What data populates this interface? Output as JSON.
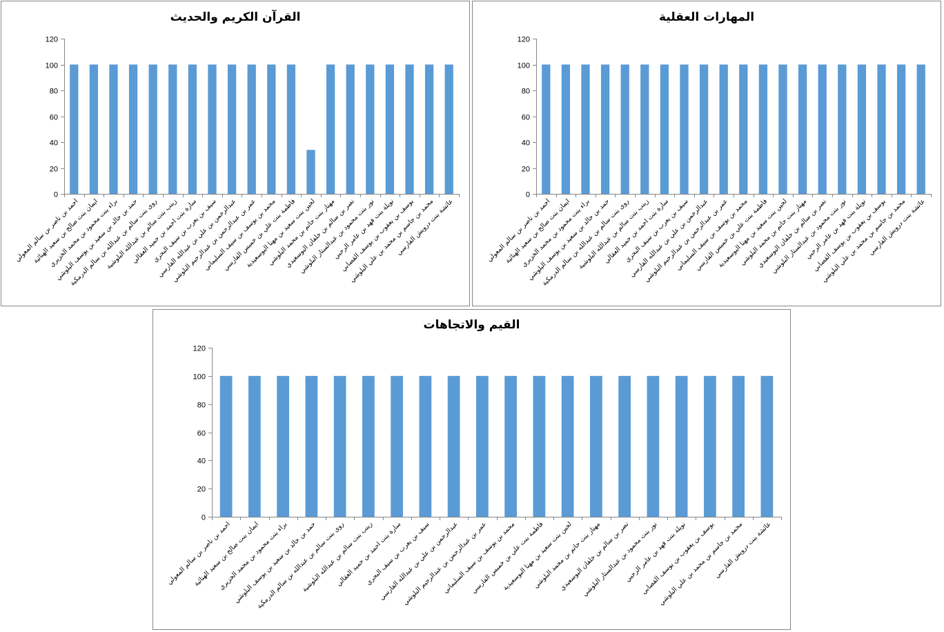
{
  "chart_data": [
    {
      "type": "bar",
      "title": "القرآن الكريم والحديث",
      "categories": [
        "احمد بن ناصر بن سالم المعولي",
        "ايمان بنت صالح بن سعيد الهنائية",
        "براء بنت محمود بن محمد الخزيري",
        "حمد بن خالد بن سعيد بن يوسف البلوشي",
        "روى بنت سالم بن عبدالله بن سالم الدرمكية",
        "زينب بنت سالم بن عبدالله البلوشية",
        "سارة بنت احمد بن حميد العقالي",
        "سيف بن يعرب بن سيف البحري",
        "عبدالرحمن بن علي بن عبدالله الفارسي",
        "عمر بن عبدالرحمن بن عبدالرحيم البلوشي",
        "محمد بن يوسف بن سيف السليماني",
        "فاطمة بنت علي بن خميس الفارسي",
        "لجين بنت سعيد بن مهنا البوسعيدية",
        "مهناز بنت حاتم بن محمد البلوشي",
        "نصر بن سالم بن خلفان البوسعيدي",
        "نور بنت محمود بن عبدالستار البلوشي",
        "نويلة بنت فهد بن عامر الرحبي",
        "يوسف بن يعقوب بن يوسف القصابي",
        "محمد بن جاسم بن محمد بن علي البلوشي",
        "عائشة بنت درويش الفارسي"
      ],
      "values": [
        100,
        100,
        100,
        100,
        100,
        100,
        100,
        100,
        100,
        100,
        100,
        100,
        34,
        100,
        100,
        100,
        100,
        100,
        100,
        100
      ],
      "ylim": [
        0,
        120
      ],
      "yticks": [
        0,
        20,
        40,
        60,
        80,
        100,
        120
      ],
      "grid": false,
      "color": "#5B9BD5"
    },
    {
      "type": "bar",
      "title": "المهارات العقلية",
      "categories": [
        "احمد بن ناصر بن سالم المعولي",
        "ايمان بنت صالح بن سعيد الهنائية",
        "براء بنت محمود بن محمد الخزيري",
        "حمد بن خالد بن سعيد بن يوسف البلوشي",
        "روى بنت سالم بن عبدالله بن سالم الدرمكية",
        "زينب بنت سالم بن عبدالله البلوشية",
        "سارة بنت احمد بن حميد العقالي",
        "سيف بن يعرب بن سيف البحري",
        "عبدالرحمن بن علي بن عبدالله الفارسي",
        "عمر بن عبدالرحمن بن عبدالرحيم البلوشي",
        "محمد بن يوسف بن سيف السليماني",
        "فاطمة بنت علي بن خميس الفارسي",
        "لجين بنت سعيد بن مهنا البوسعيدية",
        "مهناز بنت حاتم بن محمد البلوشي",
        "نصر بن سالم بن خلفان البوسعيدي",
        "نور بنت محمود بن عبدالستار البلوشي",
        "نويلة بنت فهد بن عامر الرحبي",
        "يوسف بن يعقوب بن يوسف القصابي",
        "محمد بن جاسم بن محمد بن علي البلوشي",
        "عائشة بنت درويش الفارسي"
      ],
      "values": [
        100,
        100,
        100,
        100,
        100,
        100,
        100,
        100,
        100,
        100,
        100,
        100,
        100,
        100,
        100,
        100,
        100,
        100,
        100,
        100
      ],
      "ylim": [
        0,
        120
      ],
      "yticks": [
        0,
        20,
        40,
        60,
        80,
        100,
        120
      ],
      "grid": false,
      "color": "#5B9BD5"
    },
    {
      "type": "bar",
      "title": "القيم والاتجاهات",
      "categories": [
        "احمد بن ناصر بن سالم المعولي",
        "ايمان بنت صالح بن سعيد الهنائية",
        "براء بنت محمود بن محمد الخزيري",
        "حمد بن خالد بن سعيد بن يوسف البلوشي",
        "روى بنت سالم بن عبدالله بن سالم الدرمكية",
        "زينب بنت سالم بن عبدالله البلوشية",
        "سارة بنت احمد بن حميد العقالي",
        "سيف بن يعرب بن سيف البحري",
        "عبدالرحمن بن علي بن عبدالله الفارسي",
        "عمر بن عبدالرحمن بن عبدالرحيم البلوشي",
        "محمد بن يوسف بن سيف السليماني",
        "فاطمة بنت علي بن خميس الفارسي",
        "لجين بنت سعيد بن مهنا البوسعيدية",
        "مهناز بنت حاتم بن محمد البلوشي",
        "نصر بن سالم بن خلفان البوسعيدي",
        "نور بنت محمود بن عبدالستار البلوشي",
        "نويلة بنت فهد بن عامر الرحبي",
        "يوسف بن يعقوب بن يوسف القصابي",
        "محمد بن جاسم بن محمد بن علي البلوشي",
        "عائشة بنت درويش الفارسي"
      ],
      "values": [
        100,
        100,
        100,
        100,
        100,
        100,
        100,
        100,
        100,
        100,
        100,
        100,
        100,
        100,
        100,
        100,
        100,
        100,
        100,
        100
      ],
      "ylim": [
        0,
        120
      ],
      "yticks": [
        0,
        20,
        40,
        60,
        80,
        100,
        120
      ],
      "grid": false,
      "color": "#5B9BD5"
    }
  ]
}
